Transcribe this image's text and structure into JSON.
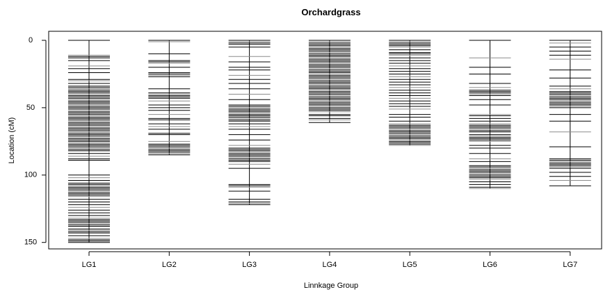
{
  "chart_data": {
    "type": "linkage-map",
    "title": "Orchardgrass",
    "xlabel": "Linnkage Group",
    "ylabel": "Location (cM)",
    "ylim": [
      0,
      155
    ],
    "y_axis_inverted": true,
    "yticks": [
      0,
      50,
      100,
      150
    ],
    "categories": [
      "LG1",
      "LG2",
      "LG3",
      "LG4",
      "LG5",
      "LG6",
      "LG7"
    ],
    "colors": {
      "marker_dark": "#000000",
      "marker_light": "#8c8c8c"
    },
    "groups": [
      {
        "name": "LG1",
        "length": 150,
        "markers": [
          0,
          11,
          12,
          13,
          15,
          19,
          21,
          24,
          29,
          30,
          32,
          34,
          35,
          36,
          37,
          38,
          39,
          40,
          41,
          42,
          43,
          44,
          45,
          46,
          47,
          48,
          49,
          50,
          51,
          52,
          53,
          54,
          55,
          56,
          57,
          58,
          59,
          60,
          61,
          62,
          63,
          64,
          65,
          66,
          67,
          68,
          69,
          70,
          71,
          72,
          73,
          74,
          75,
          76,
          77,
          78,
          79,
          80,
          81,
          82,
          84,
          86,
          88,
          89,
          100,
          102,
          104,
          106,
          107,
          108,
          109,
          110,
          111,
          112,
          113,
          114,
          115,
          116,
          118,
          120,
          122,
          124,
          126,
          128,
          130,
          132,
          133,
          134,
          135,
          136,
          137,
          138,
          140,
          141,
          142,
          143,
          145,
          147,
          148,
          149,
          150
        ]
      },
      {
        "name": "LG2",
        "length": 85,
        "markers": [
          0,
          1,
          10,
          15,
          16,
          17,
          20,
          24,
          25,
          26,
          27,
          36,
          39,
          40,
          41,
          42,
          43,
          45,
          48,
          50,
          52,
          55,
          58,
          59,
          62,
          64,
          66,
          69,
          70,
          75,
          77,
          78,
          79,
          80,
          81,
          82,
          83,
          84,
          85
        ]
      },
      {
        "name": "LG3",
        "length": 122,
        "markers": [
          0,
          1,
          2,
          3,
          5,
          12,
          16,
          20,
          22,
          26,
          29,
          32,
          36,
          40,
          44,
          48,
          49,
          50,
          51,
          52,
          53,
          54,
          55,
          56,
          57,
          58,
          59,
          60,
          62,
          64,
          66,
          70,
          74,
          78,
          80,
          81,
          82,
          83,
          84,
          85,
          86,
          87,
          88,
          89,
          90,
          92,
          95,
          107,
          108,
          109,
          112,
          118,
          120,
          121,
          122
        ]
      },
      {
        "name": "LG4",
        "length": 61,
        "markers": [
          0,
          1,
          2,
          3,
          4,
          5,
          6,
          7,
          8,
          9,
          10,
          11,
          12,
          13,
          14,
          15,
          16,
          17,
          18,
          19,
          20,
          21,
          22,
          23,
          24,
          25,
          26,
          27,
          28,
          29,
          30,
          31,
          32,
          33,
          34,
          35,
          36,
          37,
          38,
          39,
          40,
          41,
          42,
          43,
          44,
          45,
          46,
          47,
          48,
          49,
          50,
          51,
          52,
          53,
          55,
          56,
          58,
          59,
          61
        ]
      },
      {
        "name": "LG5",
        "length": 78,
        "markers": [
          0,
          1,
          2,
          3,
          4,
          5,
          7,
          9,
          10,
          11,
          13,
          15,
          17,
          19,
          21,
          23,
          25,
          27,
          29,
          31,
          33,
          35,
          37,
          39,
          41,
          43,
          45,
          47,
          49,
          51,
          55,
          57,
          60,
          62,
          63,
          64,
          65,
          66,
          67,
          68,
          69,
          70,
          71,
          72,
          73,
          74,
          75,
          76,
          77,
          78
        ]
      },
      {
        "name": "LG6",
        "length": 110,
        "markers": [
          0,
          13,
          20,
          25,
          32,
          35,
          37,
          38,
          39,
          40,
          41,
          44,
          48,
          55,
          56,
          58,
          60,
          62,
          63,
          64,
          65,
          66,
          67,
          68,
          70,
          71,
          72,
          73,
          74,
          75,
          78,
          80,
          84,
          88,
          90,
          93,
          94,
          95,
          96,
          97,
          98,
          99,
          100,
          101,
          102,
          103,
          105,
          107,
          109,
          110
        ]
      },
      {
        "name": "LG7",
        "length": 108,
        "markers": [
          0,
          2,
          5,
          8,
          11,
          14,
          22,
          28,
          34,
          36,
          38,
          39,
          40,
          41,
          42,
          43,
          44,
          45,
          46,
          47,
          48,
          49,
          50,
          55,
          60,
          68,
          79,
          88,
          89,
          90,
          91,
          92,
          93,
          94,
          95,
          98,
          101,
          104,
          108
        ]
      }
    ]
  }
}
